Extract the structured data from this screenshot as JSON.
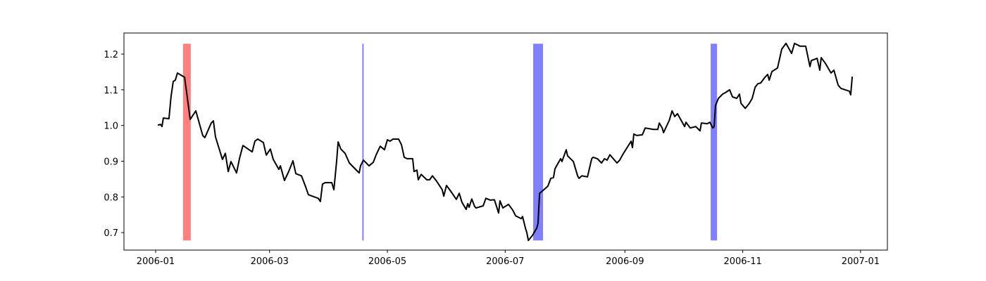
{
  "chart_data": {
    "type": "line",
    "color": "#000000",
    "xlim": [
      -16.4,
      378.9
    ],
    "ylim": [
      0.651,
      1.259
    ],
    "xticks": [
      {
        "value": 0,
        "label": "2006-01"
      },
      {
        "value": 59,
        "label": "2006-03"
      },
      {
        "value": 120,
        "label": "2006-05"
      },
      {
        "value": 181,
        "label": "2006-07"
      },
      {
        "value": 243,
        "label": "2006-09"
      },
      {
        "value": 304,
        "label": "2006-11"
      },
      {
        "value": 365,
        "label": "2007-01"
      }
    ],
    "yticks": [
      0.7,
      0.8,
      0.9,
      {
        "value": 1,
        "label": "1.0"
      },
      1.1,
      1.2
    ],
    "spans": [
      {
        "x0": 14.2,
        "x1": 18.2,
        "ymin": 0.678,
        "ymax": 1.229,
        "color": "#ff0000",
        "alpha": 0.5
      },
      {
        "x0": 107.0,
        "x1": 107.5,
        "ymin": 0.678,
        "ymax": 1.229,
        "color": "#0000ff",
        "alpha": 0.5
      },
      {
        "x0": 195.5,
        "x1": 200.6,
        "ymin": 0.678,
        "ymax": 1.229,
        "color": "#0000ff",
        "alpha": 0.5
      },
      {
        "x0": 287.4,
        "x1": 290.7,
        "ymin": 0.678,
        "ymax": 1.229,
        "color": "#0000ff",
        "alpha": 0.5
      }
    ],
    "x": [
      1.1,
      2.6,
      3.3,
      4,
      6.9,
      8,
      9.1,
      10.2,
      11.3,
      15,
      17.9,
      20.8,
      24.4,
      25.5,
      28.8,
      29.9,
      31,
      34.6,
      36.1,
      37.6,
      39,
      41.9,
      43.4,
      45.2,
      50,
      51.4,
      52.9,
      55.8,
      57.3,
      59.4,
      60.9,
      63.8,
      64.6,
      66.7,
      68.9,
      71.1,
      72.6,
      75.5,
      77.7,
      79.1,
      84.2,
      85.3,
      86.4,
      87.9,
      91.2,
      92.3,
      93.7,
      94.5,
      95.9,
      98.1,
      100.3,
      103.2,
      105.4,
      106.1,
      107.6,
      110.5,
      112.7,
      114.2,
      116.3,
      118.5,
      120,
      121.4,
      122.9,
      125.8,
      127.3,
      128.7,
      130.2,
      133.1,
      133.8,
      135.3,
      136,
      137.5,
      140.4,
      141.9,
      143.3,
      145.5,
      148.4,
      149.2,
      150.6,
      152.8,
      155.7,
      157.2,
      158.6,
      160.8,
      161.6,
      162.3,
      163.7,
      165.2,
      165.9,
      169.6,
      171,
      173.2,
      175.4,
      177.6,
      178.3,
      179.8,
      182.7,
      184.9,
      186.4,
      189.3,
      190,
      191.5,
      192.2,
      193,
      195.1,
      197.3,
      198,
      198.8,
      201,
      203.1,
      204.6,
      206,
      206.8,
      209.7,
      210.4,
      212.6,
      213.3,
      216.3,
      218.5,
      219.2,
      220.7,
      223.6,
      225.8,
      226.5,
      228.7,
      230.9,
      232.4,
      233.8,
      235.2,
      238.9,
      240.3,
      241.8,
      246.2,
      246.9,
      247.6,
      249.1,
      252,
      253.5,
      257.8,
      260,
      260.8,
      262.3,
      263,
      266,
      267.4,
      268.8,
      270.2,
      273.9,
      274.6,
      276.8,
      279.7,
      281.9,
      282.6,
      285.6,
      287,
      288.5,
      289.2,
      289.9,
      291.4,
      293.6,
      295,
      297.2,
      298.7,
      300.9,
      302.3,
      303.1,
      305.3,
      307.4,
      308.9,
      310.4,
      311.8,
      313.3,
      315.5,
      316.9,
      317.7,
      319.1,
      322,
      324.2,
      326.4,
      329.3,
      330.8,
      333.7,
      336.6,
      338.8,
      339.5,
      342.5,
      343.9,
      344.6,
      346.8,
      349.7,
      351.2,
      353.4,
      354.8,
      359.2,
      359.9,
      360.7
    ],
    "values": [
      1.001,
      1.003,
      0.997,
      1.021,
      1.019,
      1.082,
      1.123,
      1.127,
      1.147,
      1.135,
      1.017,
      1.041,
      0.972,
      0.966,
      1.007,
      1.013,
      0.968,
      0.905,
      0.922,
      0.871,
      0.899,
      0.867,
      0.907,
      0.944,
      0.926,
      0.956,
      0.962,
      0.952,
      0.917,
      0.934,
      0.905,
      0.877,
      0.887,
      0.846,
      0.871,
      0.901,
      0.865,
      0.859,
      0.828,
      0.806,
      0.796,
      0.787,
      0.836,
      0.84,
      0.84,
      0.82,
      0.899,
      0.954,
      0.934,
      0.922,
      0.895,
      0.879,
      0.867,
      0.887,
      0.903,
      0.887,
      0.897,
      0.918,
      0.942,
      0.932,
      0.96,
      0.956,
      0.962,
      0.962,
      0.946,
      0.911,
      0.907,
      0.907,
      0.871,
      0.875,
      0.848,
      0.863,
      0.848,
      0.848,
      0.859,
      0.844,
      0.82,
      0.802,
      0.832,
      0.816,
      0.793,
      0.81,
      0.785,
      0.765,
      0.781,
      0.771,
      0.794,
      0.773,
      0.769,
      0.775,
      0.796,
      0.791,
      0.792,
      0.755,
      0.789,
      0.769,
      0.779,
      0.763,
      0.747,
      0.739,
      0.745,
      0.712,
      0.7,
      0.678,
      0.692,
      0.712,
      0.726,
      0.81,
      0.82,
      0.83,
      0.852,
      0.854,
      0.879,
      0.907,
      0.899,
      0.932,
      0.915,
      0.899,
      0.859,
      0.852,
      0.859,
      0.856,
      0.907,
      0.911,
      0.907,
      0.895,
      0.907,
      0.903,
      0.918,
      0.895,
      0.903,
      0.918,
      0.956,
      0.938,
      0.976,
      0.972,
      0.974,
      0.993,
      0.989,
      0.989,
      1.007,
      0.993,
      0.98,
      1.015,
      1.041,
      1.025,
      1.033,
      0.997,
      1.009,
      0.993,
      0.997,
      0.985,
      1.007,
      1.005,
      1.009,
      0.993,
      0.997,
      1.056,
      1.076,
      1.088,
      1.092,
      1.1,
      1.08,
      1.076,
      1.088,
      1.062,
      1.048,
      1.062,
      1.076,
      1.107,
      1.117,
      1.119,
      1.135,
      1.143,
      1.127,
      1.151,
      1.161,
      1.214,
      1.23,
      1.202,
      1.23,
      1.222,
      1.222,
      1.165,
      1.182,
      1.188,
      1.155,
      1.19,
      1.174,
      1.147,
      1.155,
      1.113,
      1.104,
      1.096,
      1.086,
      1.137
    ]
  }
}
